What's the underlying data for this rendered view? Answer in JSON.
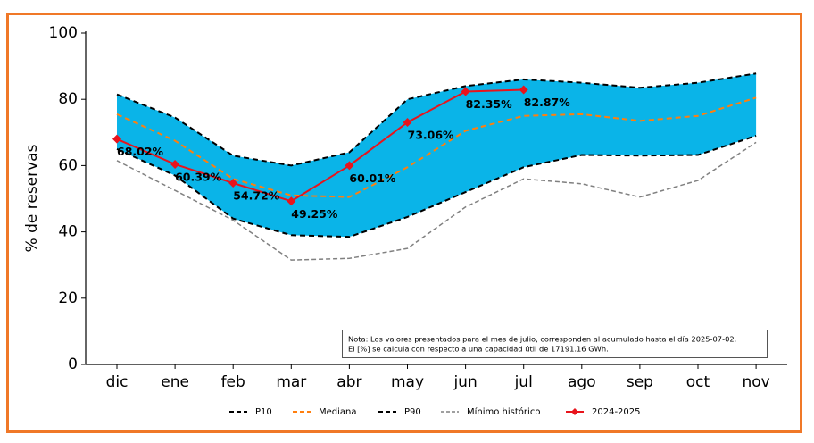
{
  "chart_data": {
    "type": "line",
    "ylabel": "% de reservas",
    "categories": [
      "dic",
      "ene",
      "feb",
      "mar",
      "abr",
      "may",
      "jun",
      "jul",
      "ago",
      "sep",
      "oct",
      "nov"
    ],
    "ylim": [
      0,
      100
    ],
    "yticks": [
      0,
      20,
      40,
      60,
      80,
      100
    ],
    "band_color": "#0ab4e8",
    "series": [
      {
        "name": "P10",
        "color": "#000000",
        "style": "dashed",
        "values": [
          65,
          57,
          44,
          39,
          38.5,
          44.5,
          52,
          59.5,
          63.2,
          63,
          63.2,
          69
        ]
      },
      {
        "name": "Mediana",
        "color": "#ff7f0e",
        "style": "dashed",
        "values": [
          75.5,
          67.5,
          56,
          51,
          50.5,
          59.5,
          70.5,
          75,
          75.5,
          73.5,
          75,
          80.5
        ]
      },
      {
        "name": "P90",
        "color": "#000000",
        "style": "dashed",
        "values": [
          81.5,
          74.5,
          63,
          60,
          64,
          80,
          84,
          86,
          85,
          83.5,
          85,
          87.8
        ]
      },
      {
        "name": "Mínimo histórico",
        "color": "#808080",
        "style": "thin-dashed",
        "values": [
          61.5,
          52.5,
          43.5,
          31.5,
          32,
          35,
          47.5,
          56,
          54.5,
          50.5,
          55.5,
          67
        ]
      },
      {
        "name": "2024-2025",
        "color": "#e8141c",
        "style": "solid-marker",
        "values": [
          68.02,
          60.39,
          54.72,
          49.25,
          60.01,
          73.06,
          82.35,
          82.87,
          null,
          null,
          null,
          null
        ],
        "value_labels": [
          "68.02%",
          "60.39%",
          "54.72%",
          "49.25%",
          "60.01%",
          "73.06%",
          "82.35%",
          "82.87%",
          null,
          null,
          null,
          null
        ]
      }
    ],
    "note": [
      "Nota: Los valores presentados para el mes de julio, corresponden al acumulado hasta el día 2025-07-02.",
      "El [%] se calcula con respecto a una capacidad útil de 17191.16 GWh."
    ]
  }
}
